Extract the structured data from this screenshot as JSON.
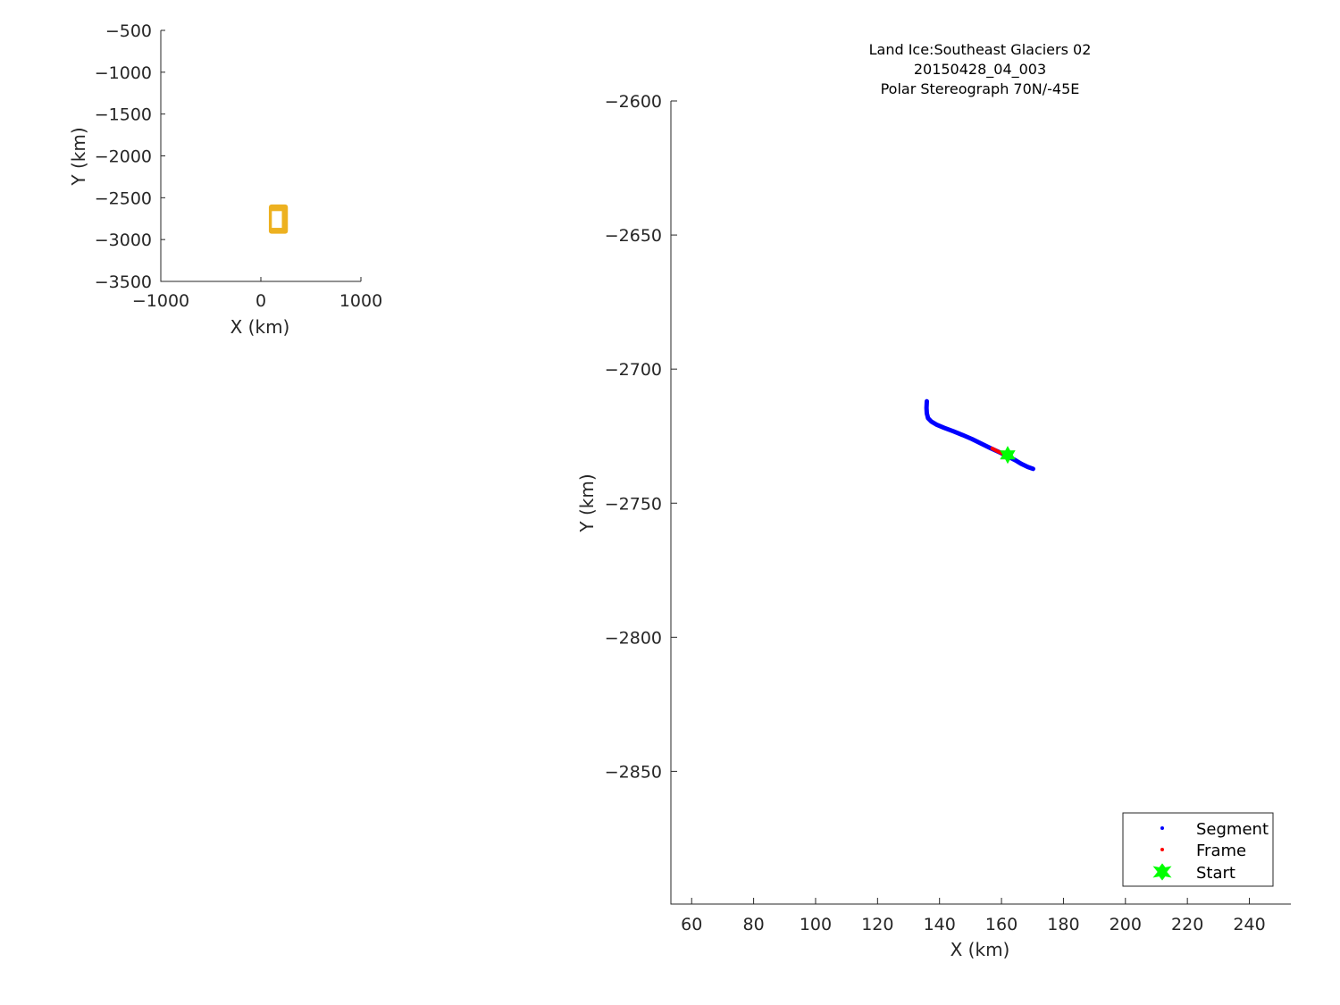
{
  "chart_data": [
    {
      "type": "scatter",
      "name_hint": "overview",
      "xlabel": "X (km)",
      "ylabel": "Y (km)",
      "xlim": [
        -1000,
        1000
      ],
      "ylim": [
        -3500,
        -500
      ],
      "xticks": [
        -1000,
        0,
        1000
      ],
      "yticks": [
        -500,
        -1000,
        -1500,
        -2000,
        -2500,
        -3000,
        -3500
      ],
      "box": {
        "x": [
          80,
          270
        ],
        "y": [
          -2930,
          -2580
        ],
        "color": "#edb120"
      },
      "inner_box": {
        "x": [
          110,
          210
        ],
        "y": [
          -2860,
          -2660
        ],
        "color": "#ffffff"
      }
    },
    {
      "type": "scatter",
      "name_hint": "detail",
      "title": [
        "Land Ice:Southeast  Glaciers 02",
        "20150428_04_003",
        "Polar Stereograph 70N/-45E"
      ],
      "xlabel": "X (km)",
      "ylabel": "Y (km)",
      "xlim": [
        53.3,
        253.4
      ],
      "ylim": [
        -2899.5,
        -2600
      ],
      "xticks": [
        60,
        80,
        100,
        120,
        140,
        160,
        180,
        200,
        220,
        240
      ],
      "yticks": [
        -2600,
        -2650,
        -2700,
        -2750,
        -2800,
        -2850
      ],
      "legend_position": "bottom-right",
      "series": [
        {
          "name": "Segment",
          "color": "#0000ff",
          "x": [
            135.9,
            135.8,
            135.9,
            136.3,
            137.3,
            139.0,
            141.5,
            144.5,
            147.5,
            150.5,
            153.5,
            156.5,
            159.5,
            162.0,
            164.5,
            166.5,
            168.5,
            170.2
          ],
          "y": [
            -2712.0,
            -2714.5,
            -2716.5,
            -2718.3,
            -2719.5,
            -2720.7,
            -2721.9,
            -2723.2,
            -2724.6,
            -2726.1,
            -2727.8,
            -2729.5,
            -2731.1,
            -2732.5,
            -2734.0,
            -2735.4,
            -2736.5,
            -2737.2
          ]
        },
        {
          "name": "Frame",
          "color": "#ff0000",
          "x": [
            157.0,
            158.0,
            159.0,
            160.0,
            161.0
          ],
          "y": [
            -2729.6,
            -2730.2,
            -2730.8,
            -2731.3,
            -2731.8
          ]
        },
        {
          "name": "Start",
          "color": "#00ff00",
          "x": [
            162.0
          ],
          "y": [
            -2732.0
          ]
        }
      ]
    }
  ]
}
